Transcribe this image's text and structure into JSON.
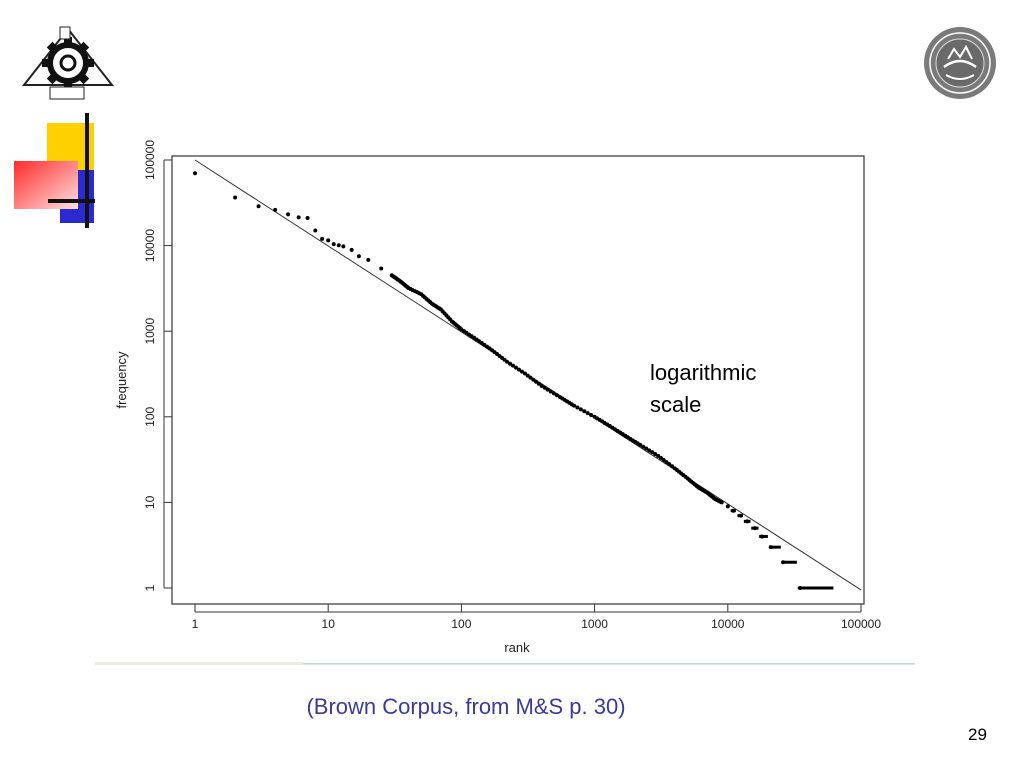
{
  "slide": {
    "annotation": "logarithmic\nscale",
    "caption": "(Brown Corpus, from M&S p. 30)",
    "page_number": "29"
  },
  "logos": {
    "left": "university-gear-emblem-icon",
    "right": "university-of-tehran-seal-icon"
  },
  "colors": {
    "caption": "#3a3a9a",
    "deco_yellow": "#ffd000",
    "deco_blue": "#2a2ad0",
    "deco_red": "#ff3030"
  },
  "chart_data": {
    "type": "scatter",
    "title": "",
    "xlabel": "rank",
    "ylabel": "frequency",
    "xscale": "log",
    "yscale": "log",
    "xlim": [
      1,
      100000
    ],
    "ylim": [
      1,
      100000
    ],
    "xticks": [
      1,
      10,
      100,
      1000,
      10000,
      100000
    ],
    "xtick_labels": [
      "1",
      "10",
      "100",
      "1000",
      "10000",
      "100000"
    ],
    "yticks": [
      1,
      10,
      100,
      1000,
      10000,
      100000
    ],
    "ytick_labels": [
      "1",
      "10",
      "100",
      "1000",
      "10000",
      "100000"
    ],
    "grid": false,
    "reference_line": {
      "x": [
        1,
        100000
      ],
      "y": [
        100000,
        0.95
      ]
    },
    "points": [
      {
        "x": 1,
        "y": 69971
      },
      {
        "x": 2,
        "y": 36412
      },
      {
        "x": 3,
        "y": 28853
      },
      {
        "x": 4,
        "y": 26158
      },
      {
        "x": 5,
        "y": 23195
      },
      {
        "x": 6,
        "y": 21337
      },
      {
        "x": 7,
        "y": 21000
      },
      {
        "x": 8,
        "y": 14994
      },
      {
        "x": 9,
        "y": 12000
      },
      {
        "x": 10,
        "y": 11500
      },
      {
        "x": 11,
        "y": 10400
      },
      {
        "x": 12,
        "y": 10100
      },
      {
        "x": 13,
        "y": 9800
      },
      {
        "x": 15,
        "y": 8900
      },
      {
        "x": 17,
        "y": 7500
      },
      {
        "x": 20,
        "y": 6800
      },
      {
        "x": 25,
        "y": 5400
      },
      {
        "x": 30,
        "y": 4500
      },
      {
        "x": 35,
        "y": 3800
      },
      {
        "x": 40,
        "y": 3200
      },
      {
        "x": 50,
        "y": 2700
      },
      {
        "x": 60,
        "y": 2100
      },
      {
        "x": 70,
        "y": 1800
      },
      {
        "x": 85,
        "y": 1300
      },
      {
        "x": 100,
        "y": 1050
      },
      {
        "x": 130,
        "y": 800
      },
      {
        "x": 170,
        "y": 600
      },
      {
        "x": 220,
        "y": 440
      },
      {
        "x": 300,
        "y": 320
      },
      {
        "x": 400,
        "y": 230
      },
      {
        "x": 550,
        "y": 170
      },
      {
        "x": 700,
        "y": 135
      },
      {
        "x": 1000,
        "y": 100
      },
      {
        "x": 1300,
        "y": 78
      },
      {
        "x": 1700,
        "y": 60
      },
      {
        "x": 2200,
        "y": 47
      },
      {
        "x": 3000,
        "y": 35
      },
      {
        "x": 4000,
        "y": 25
      },
      {
        "x": 5000,
        "y": 19
      },
      {
        "x": 6000,
        "y": 15
      },
      {
        "x": 7000,
        "y": 13
      },
      {
        "x": 8000,
        "y": 11
      },
      {
        "x": 9000,
        "y": 10
      },
      {
        "x": 10000,
        "y": 9
      },
      {
        "x": 11000,
        "y": 8
      },
      {
        "x": 12500,
        "y": 7
      },
      {
        "x": 14000,
        "y": 6
      },
      {
        "x": 16000,
        "y": 5
      },
      {
        "x": 18000,
        "y": 4
      },
      {
        "x": 21000,
        "y": 3
      },
      {
        "x": 26000,
        "y": 2
      },
      {
        "x": 35000,
        "y": 1
      }
    ],
    "step_runs": [
      {
        "x": [
          10500,
          11500
        ],
        "y": 8
      },
      {
        "x": [
          11800,
          13000
        ],
        "y": 7
      },
      {
        "x": [
          13200,
          14800
        ],
        "y": 6
      },
      {
        "x": [
          15000,
          17000
        ],
        "y": 5
      },
      {
        "x": [
          17200,
          20000
        ],
        "y": 4
      },
      {
        "x": [
          20500,
          25000
        ],
        "y": 3
      },
      {
        "x": [
          25500,
          33000
        ],
        "y": 2
      },
      {
        "x": [
          33500,
          62000
        ],
        "y": 1
      }
    ]
  }
}
